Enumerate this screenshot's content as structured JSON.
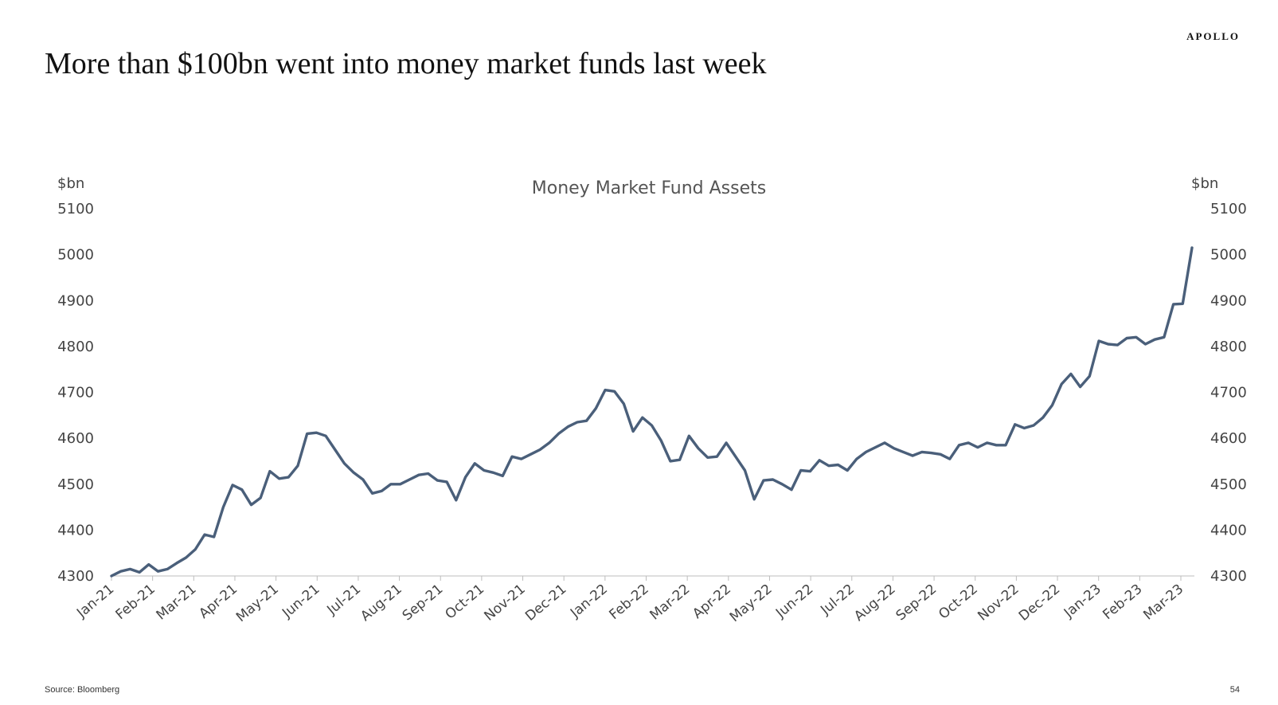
{
  "brand": "APOLLO",
  "headline": "More than $100bn went into money market funds last week",
  "footer": {
    "source": "Source: Bloomberg",
    "page_number": "54"
  },
  "chart_data": {
    "type": "line",
    "title": "Money Market Fund Assets",
    "ylabel_left": "$bn",
    "ylabel_right": "$bn",
    "ylim": [
      4300,
      5100
    ],
    "yticks": [
      4300,
      4400,
      4500,
      4600,
      4700,
      4800,
      4900,
      5000,
      5100
    ],
    "grid": false,
    "line_color": "#4a5f7a",
    "x_tick_labels": [
      "Jan-21",
      "Feb-21",
      "Mar-21",
      "Apr-21",
      "May-21",
      "Jun-21",
      "Jul-21",
      "Aug-21",
      "Sep-21",
      "Oct-21",
      "Nov-21",
      "Dec-21",
      "Jan-22",
      "Feb-22",
      "Mar-22",
      "Apr-22",
      "May-22",
      "Jun-22",
      "Jul-22",
      "Aug-22",
      "Sep-22",
      "Oct-22",
      "Nov-22",
      "Dec-22",
      "Jan-23",
      "Feb-23",
      "Mar-23"
    ],
    "series": [
      {
        "values": [
          4300,
          4310,
          4315,
          4308,
          4325,
          4310,
          4315,
          4328,
          4340,
          4358,
          4390,
          4385,
          4450,
          4498,
          4488,
          4455,
          4470,
          4528,
          4512,
          4515,
          4540,
          4610,
          4612,
          4605,
          4575,
          4545,
          4525,
          4510,
          4480,
          4485,
          4500,
          4500,
          4510,
          4520,
          4523,
          4508,
          4505,
          4465,
          4515,
          4545,
          4530,
          4525,
          4518,
          4560,
          4555,
          4565,
          4575,
          4590,
          4610,
          4625,
          4635,
          4638,
          4665,
          4705,
          4702,
          4675,
          4615,
          4645,
          4628,
          4595,
          4550,
          4553,
          4605,
          4578,
          4558,
          4560,
          4590,
          4560,
          4530,
          4467,
          4508,
          4510,
          4500,
          4488,
          4530,
          4528,
          4552,
          4540,
          4542,
          4530,
          4555,
          4570,
          4580,
          4590,
          4578,
          4570,
          4562,
          4570,
          4568,
          4565,
          4555,
          4585,
          4590,
          4580,
          4590,
          4585,
          4585,
          4630,
          4622,
          4628,
          4645,
          4672,
          4718,
          4740,
          4712,
          4735,
          4812,
          4805,
          4803,
          4818,
          4820,
          4805,
          4815,
          4820,
          4892,
          4893,
          5015
        ]
      }
    ]
  }
}
